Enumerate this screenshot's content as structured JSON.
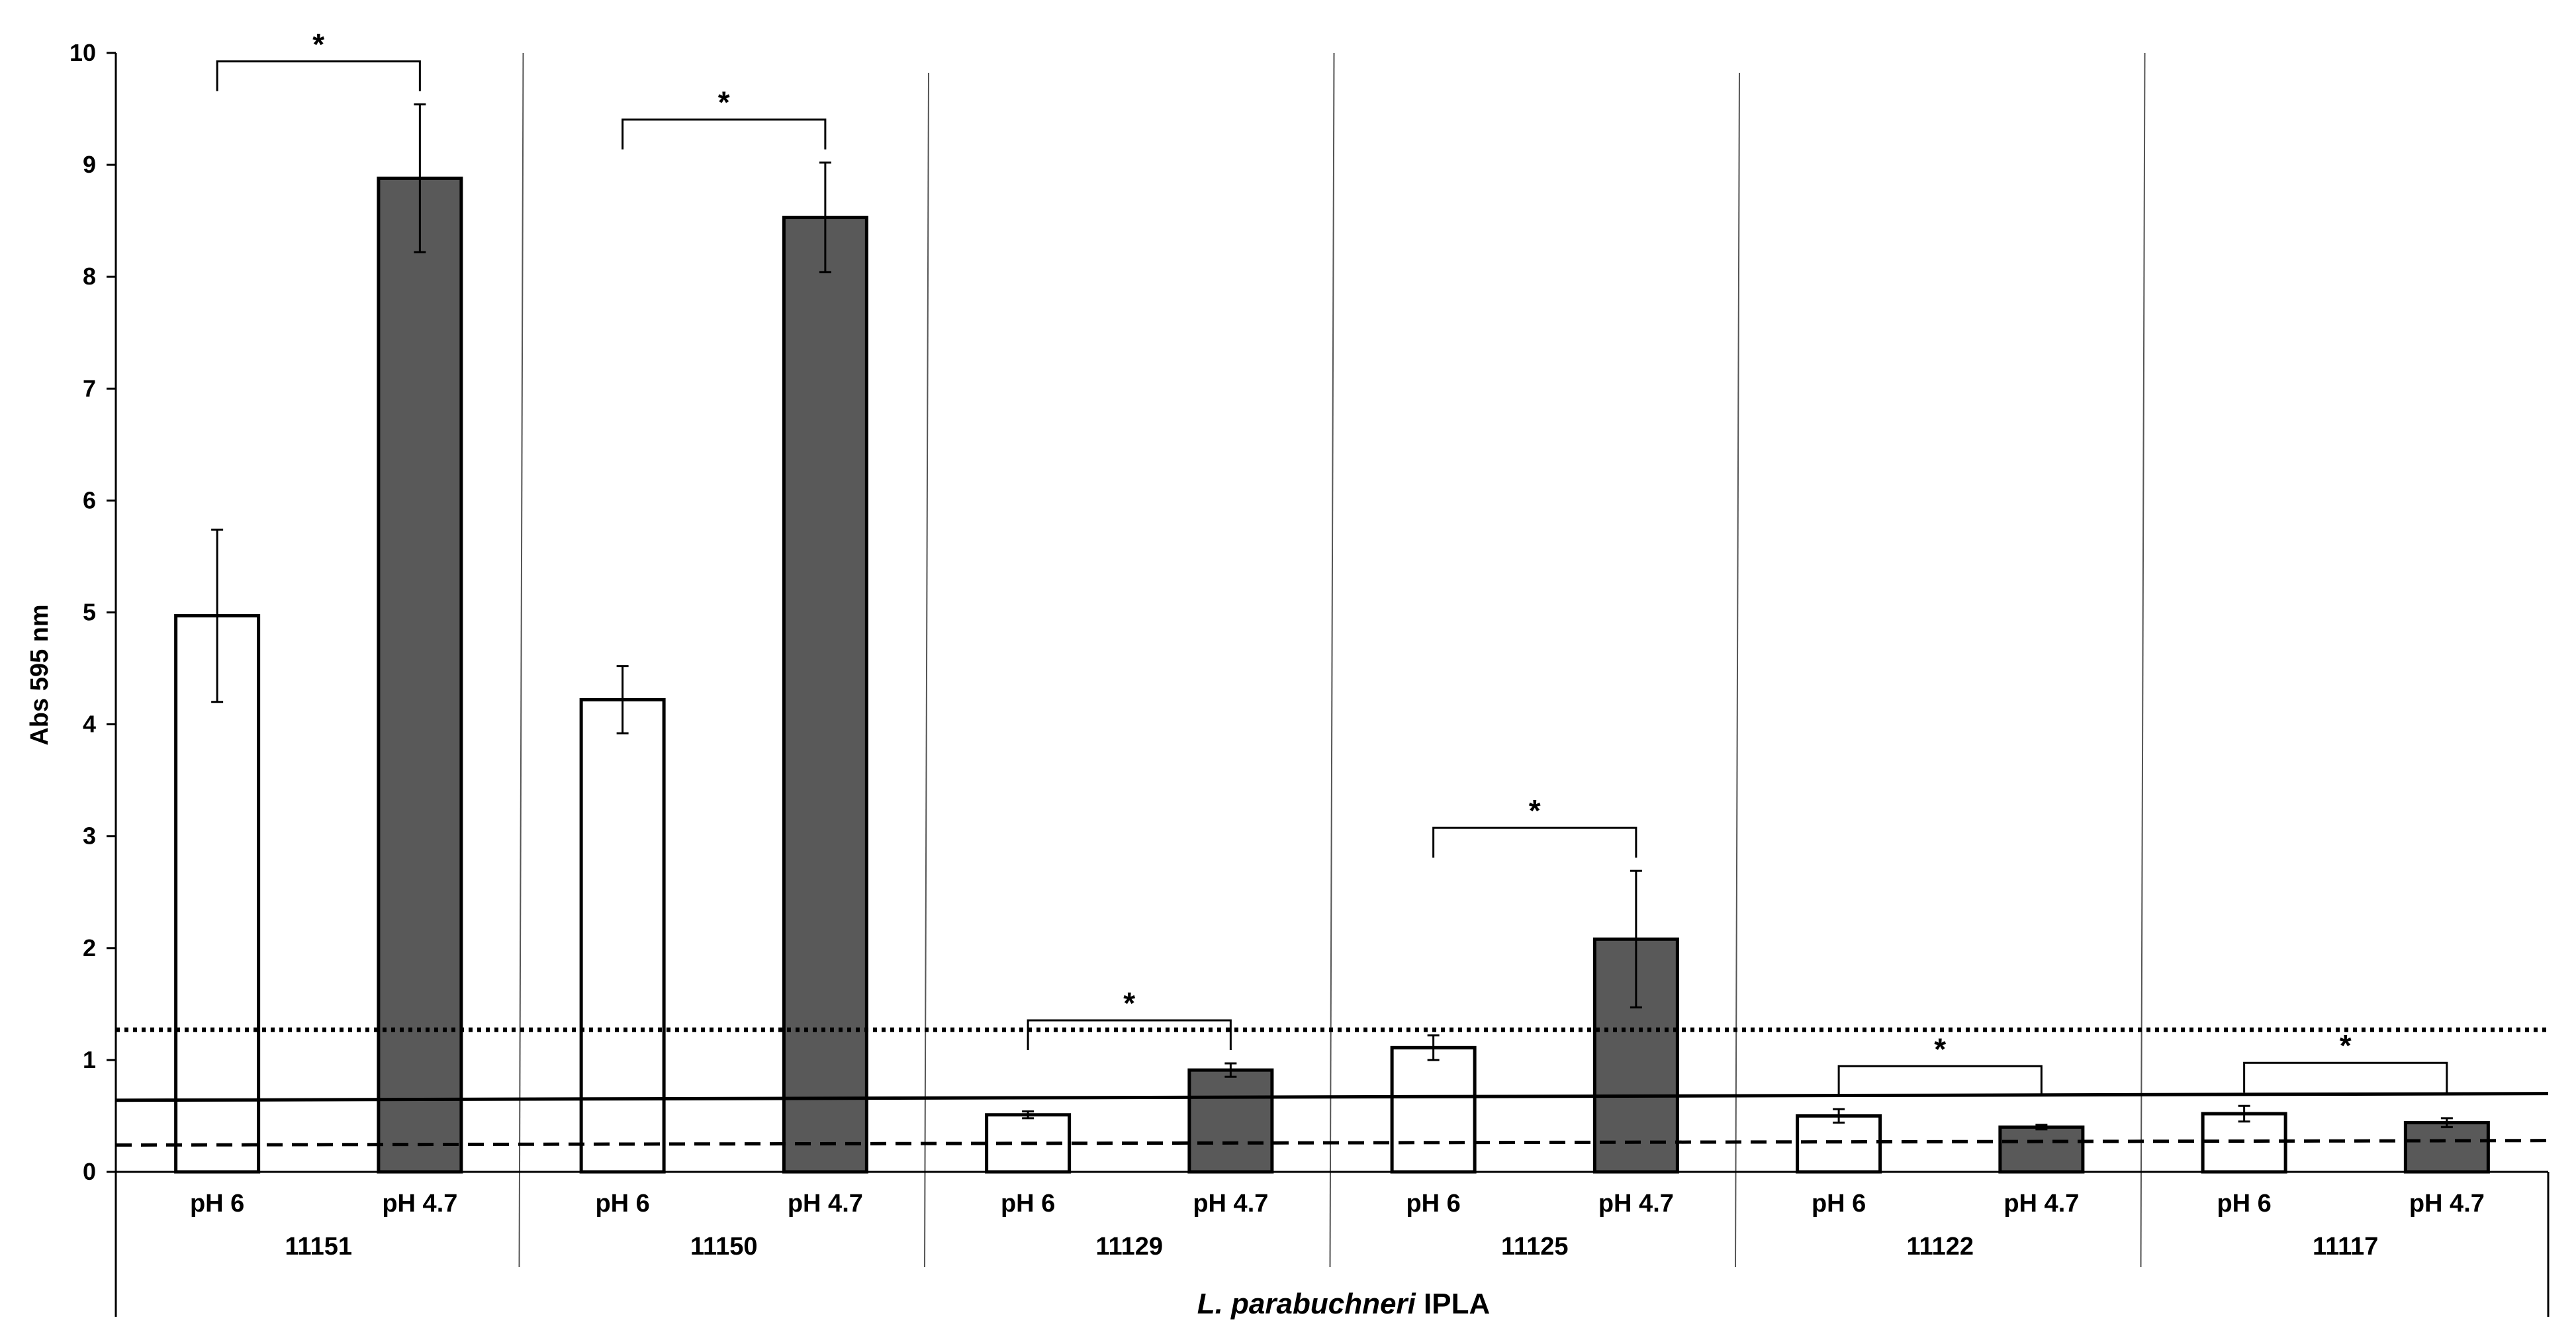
{
  "chart_data": {
    "type": "bar",
    "title": "",
    "xlabel_italic": "L. parabuchneri",
    "xlabel_rest": "IPLA",
    "ylabel": "Abs 595 nm",
    "ylim": [
      0,
      10
    ],
    "yticks": [
      "0",
      "1",
      "2",
      "3",
      "4",
      "5",
      "6",
      "7",
      "8",
      "9",
      "10"
    ],
    "groups": [
      {
        "strain": "11151",
        "bars": [
          {
            "label": "pH 6",
            "value": 4.97,
            "error": 0.77,
            "fill": "#ffffff"
          },
          {
            "label": "pH 4.7",
            "value": 8.88,
            "error": 0.66,
            "fill": "#595959"
          }
        ],
        "significance": "*"
      },
      {
        "strain": "11150",
        "bars": [
          {
            "label": "pH 6",
            "value": 4.22,
            "error": 0.3,
            "fill": "#ffffff"
          },
          {
            "label": "pH 4.7",
            "value": 8.53,
            "error": 0.49,
            "fill": "#595959"
          }
        ],
        "significance": "*"
      },
      {
        "strain": "11129",
        "bars": [
          {
            "label": "pH 6",
            "value": 0.51,
            "error": 0.03,
            "fill": "#ffffff"
          },
          {
            "label": "pH 4.7",
            "value": 0.91,
            "error": 0.06,
            "fill": "#595959"
          }
        ],
        "significance": "*"
      },
      {
        "strain": "11125",
        "bars": [
          {
            "label": "pH 6",
            "value": 1.11,
            "error": 0.11,
            "fill": "#ffffff"
          },
          {
            "label": "pH 4.7",
            "value": 2.08,
            "error": 0.61,
            "fill": "#595959"
          }
        ],
        "significance": "*"
      },
      {
        "strain": "11122",
        "bars": [
          {
            "label": "pH 6",
            "value": 0.5,
            "error": 0.06,
            "fill": "#ffffff"
          },
          {
            "label": "pH 4.7",
            "value": 0.4,
            "error": 0.02,
            "fill": "#595959"
          }
        ],
        "significance": "*"
      },
      {
        "strain": "11117",
        "bars": [
          {
            "label": "pH 6",
            "value": 0.52,
            "error": 0.07,
            "fill": "#ffffff"
          },
          {
            "label": "pH 4.7",
            "value": 0.44,
            "error": 0.04,
            "fill": "#595959"
          }
        ],
        "significance": "*"
      }
    ],
    "reference_lines": [
      {
        "style": "dotted",
        "y_start": 1.27,
        "y_end": 1.27
      },
      {
        "style": "solid",
        "y_start": 0.64,
        "y_end": 0.7
      },
      {
        "style": "dashed",
        "y_start": 0.24,
        "y_end": 0.28
      }
    ],
    "grid": false,
    "legend": "none"
  }
}
